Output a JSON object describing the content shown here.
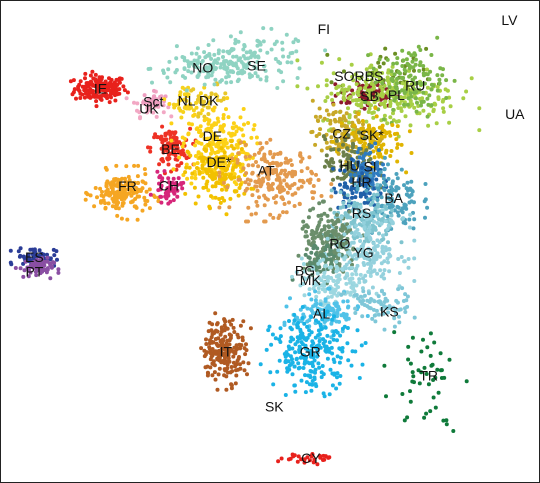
{
  "chart_data": {
    "type": "scatter",
    "title": "",
    "xlabel": "",
    "ylabel": "",
    "xlim": [
      0,
      100
    ],
    "ylim": [
      0,
      100
    ],
    "grid": false,
    "legend": "none",
    "series": [
      {
        "name": "IE",
        "color": "#e8211c",
        "center": [
          18.5,
          81.8
        ],
        "spread": [
          2.4,
          1.4
        ],
        "n": 160
      },
      {
        "name": "UK",
        "color": "#f2a8c4",
        "center": [
          27.5,
          78.4
        ],
        "spread": [
          1.6,
          1.2
        ],
        "n": 40
      },
      {
        "name": "Sct",
        "color": "#ee9ec0",
        "center": [
          28.5,
          79.5
        ],
        "spread": [
          1.0,
          0.8
        ],
        "n": 20
      },
      {
        "name": "NL",
        "color": "#f6d21c",
        "center": [
          34.5,
          79.2
        ],
        "spread": [
          1.6,
          1.6
        ],
        "n": 40
      },
      {
        "name": "DK",
        "color": "#e8c72a",
        "center": [
          38.5,
          79.6
        ],
        "spread": [
          1.8,
          1.4
        ],
        "n": 30
      },
      {
        "name": "NO",
        "color": "#8fd3c2",
        "center": [
          39.0,
          86.0
        ],
        "spread": [
          5.5,
          1.6
        ],
        "n": 110
      },
      {
        "name": "SE",
        "color": "#8fd3c2",
        "center": [
          47.0,
          88.0
        ],
        "spread": [
          5.5,
          2.6
        ],
        "n": 110
      },
      {
        "name": "BE",
        "color": "#ee3124",
        "center": [
          31.5,
          69.4
        ],
        "spread": [
          1.8,
          2.0
        ],
        "n": 100
      },
      {
        "name": "DE",
        "color": "#fcd116",
        "center": [
          40.0,
          70.0
        ],
        "spread": [
          3.2,
          4.2
        ],
        "n": 220
      },
      {
        "name": "DE*",
        "color": "#f2c100",
        "center": [
          40.5,
          64.0
        ],
        "spread": [
          2.8,
          3.2
        ],
        "n": 140
      },
      {
        "name": "AT",
        "color": "#e39a4e",
        "center": [
          51.0,
          63.0
        ],
        "spread": [
          4.0,
          3.4
        ],
        "n": 210
      },
      {
        "name": "FR",
        "color": "#f5a623",
        "center": [
          22.5,
          60.0
        ],
        "spread": [
          2.6,
          2.2
        ],
        "n": 180
      },
      {
        "name": "CH",
        "color": "#d6267a",
        "center": [
          31.0,
          61.0
        ],
        "spread": [
          1.3,
          1.4
        ],
        "n": 50
      },
      {
        "name": "ES",
        "color": "#2b3d97",
        "center": [
          6.5,
          46.8
        ],
        "spread": [
          1.8,
          1.0
        ],
        "n": 70
      },
      {
        "name": "PT",
        "color": "#8a4fa3",
        "center": [
          6.5,
          44.5
        ],
        "spread": [
          1.6,
          1.0
        ],
        "n": 60
      },
      {
        "name": "SORBS",
        "color": "#6b8e23",
        "center": [
          71.0,
          84.0
        ],
        "spread": [
          4.0,
          3.0
        ],
        "n": 50
      },
      {
        "name": "SB",
        "color": "#8b1a2b",
        "center": [
          68.5,
          80.5
        ],
        "spread": [
          2.6,
          1.2
        ],
        "n": 90
      },
      {
        "name": "PL",
        "color": "#a8cf45",
        "center": [
          72.0,
          80.5
        ],
        "spread": [
          6.5,
          3.4
        ],
        "n": 260
      },
      {
        "name": "RU",
        "color": "#7ab648",
        "center": [
          76.0,
          83.5
        ],
        "spread": [
          3.2,
          3.4
        ],
        "n": 120
      },
      {
        "name": "CZ",
        "color": "#c8a828",
        "center": [
          63.5,
          72.5
        ],
        "spread": [
          2.8,
          2.6
        ],
        "n": 120
      },
      {
        "name": "SK*",
        "color": "#e0b400",
        "center": [
          68.5,
          71.0
        ],
        "spread": [
          3.0,
          2.6
        ],
        "n": 110
      },
      {
        "name": "HU",
        "color": "#6b7f4a",
        "center": [
          65.0,
          66.0
        ],
        "spread": [
          2.4,
          2.8
        ],
        "n": 110
      },
      {
        "name": "SI",
        "color": "#2f7bc0",
        "center": [
          68.5,
          65.0
        ],
        "spread": [
          1.6,
          2.4
        ],
        "n": 70
      },
      {
        "name": "HR",
        "color": "#1f5fa8",
        "center": [
          66.5,
          61.5
        ],
        "spread": [
          2.4,
          2.6
        ],
        "n": 80
      },
      {
        "name": "BA",
        "color": "#4da2bd",
        "center": [
          72.5,
          59.0
        ],
        "spread": [
          2.6,
          3.4
        ],
        "n": 110
      },
      {
        "name": "RS",
        "color": "#7fc4cf",
        "center": [
          67.5,
          54.0
        ],
        "spread": [
          3.0,
          3.0
        ],
        "n": 150
      },
      {
        "name": "RO",
        "color": "#6b8e6b",
        "center": [
          61.0,
          50.0
        ],
        "spread": [
          2.8,
          3.2
        ],
        "n": 160
      },
      {
        "name": "YG",
        "color": "#94d1dd",
        "center": [
          68.5,
          48.0
        ],
        "spread": [
          3.2,
          3.6
        ],
        "n": 170
      },
      {
        "name": "BG",
        "color": "#5a8a6e",
        "center": [
          59.5,
          46.0
        ],
        "spread": [
          2.2,
          2.0
        ],
        "n": 60
      },
      {
        "name": "MK",
        "color": "#9cd7e0",
        "center": [
          61.5,
          41.5
        ],
        "spread": [
          3.2,
          2.6
        ],
        "n": 120
      },
      {
        "name": "AL",
        "color": "#50c2e8",
        "center": [
          60.5,
          35.0
        ],
        "spread": [
          3.0,
          2.0
        ],
        "n": 110
      },
      {
        "name": "KS",
        "color": "#7fc7d8",
        "center": [
          70.0,
          36.5
        ],
        "spread": [
          3.0,
          2.0
        ],
        "n": 70
      },
      {
        "name": "GR",
        "color": "#1ab3e6",
        "center": [
          58.0,
          27.0
        ],
        "spread": [
          3.8,
          3.8
        ],
        "n": 230
      },
      {
        "name": "IT",
        "color": "#b05a22",
        "center": [
          41.5,
          27.5
        ],
        "spread": [
          2.0,
          3.2
        ],
        "n": 200
      },
      {
        "name": "TR",
        "color": "#0f7a3a",
        "center": [
          79.0,
          22.5
        ],
        "spread": [
          3.2,
          5.5
        ],
        "n": 50
      },
      {
        "name": "CY",
        "color": "#e8211c",
        "center": [
          56.5,
          5.0
        ],
        "spread": [
          2.4,
          0.6
        ],
        "n": 30
      }
    ],
    "annotations": [
      {
        "text": "FI",
        "x": 60.0,
        "y": 94.2
      },
      {
        "text": "LV",
        "x": 94.5,
        "y": 96.0
      },
      {
        "text": "UA",
        "x": 95.5,
        "y": 76.5
      },
      {
        "text": "NO",
        "x": 37.5,
        "y": 86.2
      },
      {
        "text": "SE",
        "x": 47.5,
        "y": 86.6
      },
      {
        "text": "IE",
        "x": 18.5,
        "y": 81.8
      },
      {
        "text": "SORBS",
        "x": 66.5,
        "y": 84.4
      },
      {
        "text": "RU",
        "x": 77.0,
        "y": 82.4
      },
      {
        "text": "SB",
        "x": 68.5,
        "y": 80.2
      },
      {
        "text": "PL",
        "x": 73.5,
        "y": 80.5
      },
      {
        "text": "Sct",
        "x": 28.3,
        "y": 79.1
      },
      {
        "text": "NL",
        "x": 34.5,
        "y": 79.3
      },
      {
        "text": "DK",
        "x": 38.6,
        "y": 79.3
      },
      {
        "text": "UK",
        "x": 27.5,
        "y": 77.7
      },
      {
        "text": "DE",
        "x": 39.3,
        "y": 71.9
      },
      {
        "text": "CZ",
        "x": 63.3,
        "y": 72.5
      },
      {
        "text": "SK*",
        "x": 68.9,
        "y": 72.1
      },
      {
        "text": "BE",
        "x": 31.5,
        "y": 69.2
      },
      {
        "text": "DE*",
        "x": 40.5,
        "y": 66.5
      },
      {
        "text": "AT",
        "x": 49.3,
        "y": 64.8
      },
      {
        "text": "HU",
        "x": 64.8,
        "y": 65.8
      },
      {
        "text": "SI",
        "x": 68.6,
        "y": 65.6
      },
      {
        "text": "HR",
        "x": 67.0,
        "y": 62.4
      },
      {
        "text": "CH",
        "x": 31.2,
        "y": 61.6
      },
      {
        "text": "FR",
        "x": 23.5,
        "y": 61.5
      },
      {
        "text": "BA",
        "x": 73.0,
        "y": 59.0
      },
      {
        "text": "RS",
        "x": 67.0,
        "y": 55.9
      },
      {
        "text": "RO",
        "x": 63.0,
        "y": 49.6
      },
      {
        "text": "YG",
        "x": 67.4,
        "y": 47.7
      },
      {
        "text": "ES",
        "x": 6.2,
        "y": 46.8
      },
      {
        "text": "PT",
        "x": 6.2,
        "y": 43.8
      },
      {
        "text": "BG",
        "x": 56.5,
        "y": 44.0
      },
      {
        "text": "MK",
        "x": 57.5,
        "y": 42.0
      },
      {
        "text": "KS",
        "x": 72.2,
        "y": 35.4
      },
      {
        "text": "AL",
        "x": 59.6,
        "y": 35.0
      },
      {
        "text": "IT",
        "x": 41.8,
        "y": 27.1
      },
      {
        "text": "GR",
        "x": 57.5,
        "y": 27.1
      },
      {
        "text": "TR",
        "x": 79.5,
        "y": 22.1
      },
      {
        "text": "SK",
        "x": 50.8,
        "y": 15.7
      },
      {
        "text": "CY",
        "x": 57.6,
        "y": 5.0
      }
    ]
  }
}
